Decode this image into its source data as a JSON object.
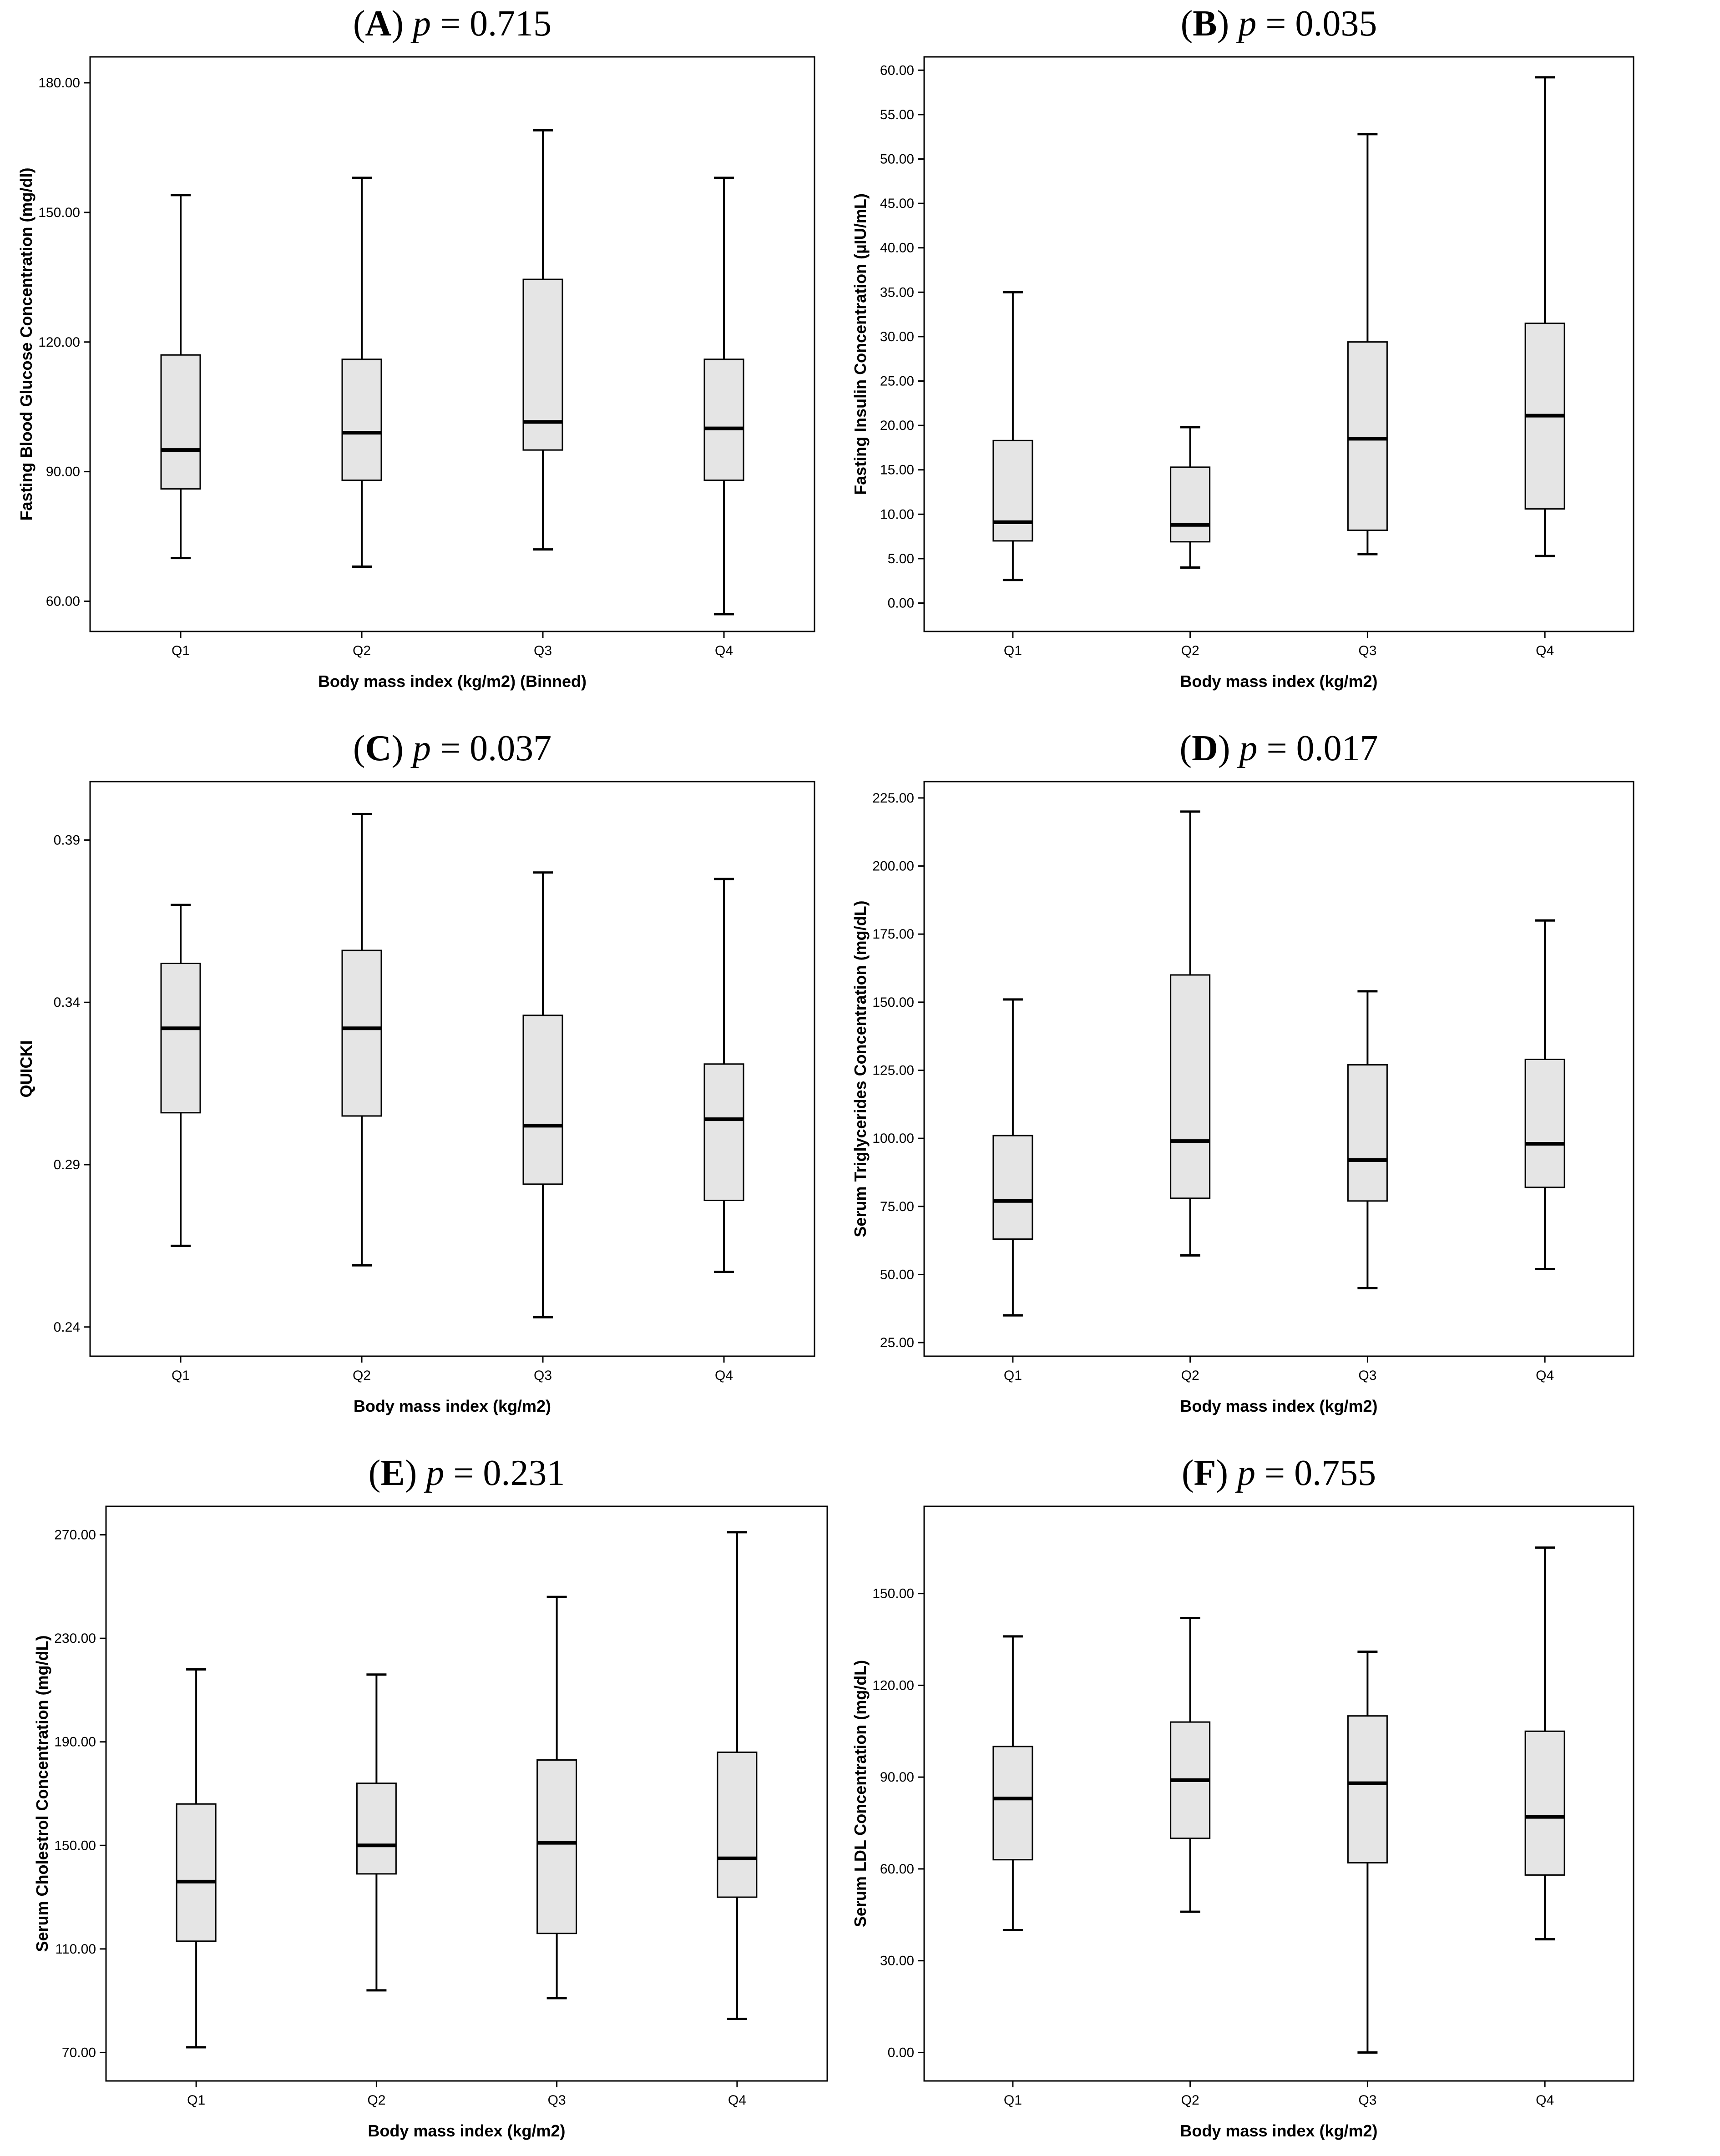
{
  "figure": {
    "background": "#ffffff",
    "box_fill": "#e5e5e5",
    "stroke": "#000000"
  },
  "chart_data": [
    {
      "type": "boxplot",
      "panel_letter": "A",
      "title_prefix": "(",
      "title_suffix": ")",
      "p_symbol": "p",
      "p_text": " = 0.715",
      "xlabel": "Body mass index (kg/m2) (Binned)",
      "ylabel": "Fasting Blood Glucose Concentration (mg/dl)",
      "ylim": [
        53.0,
        186.0
      ],
      "yticks": [
        60,
        90,
        120,
        150,
        180
      ],
      "tick_labels": [
        "60.00",
        "90.00",
        "120.00",
        "150.00",
        "180.00"
      ],
      "categories": [
        "Q1",
        "Q2",
        "Q3",
        "Q4"
      ],
      "series": [
        {
          "name": "Q1",
          "min": 70,
          "q1": 86,
          "median": 95,
          "q3": 117,
          "max": 154
        },
        {
          "name": "Q2",
          "min": 68,
          "q1": 88,
          "median": 99,
          "q3": 116,
          "max": 158
        },
        {
          "name": "Q3",
          "min": 72,
          "q1": 95,
          "median": 101.5,
          "q3": 134.5,
          "max": 169
        },
        {
          "name": "Q4",
          "min": 57,
          "q1": 88,
          "median": 100,
          "q3": 116,
          "max": 158
        }
      ]
    },
    {
      "type": "boxplot",
      "panel_letter": "B",
      "title_prefix": "(",
      "title_suffix": ")",
      "p_symbol": "p",
      "p_text": " = 0.035",
      "xlabel": "Body mass index (kg/m2)",
      "ylabel": "Fasting Insulin Concentration (µIU/mL)",
      "ylim": [
        -3.2,
        61.5
      ],
      "yticks": [
        0,
        5,
        10,
        15,
        20,
        25,
        30,
        35,
        40,
        45,
        50,
        55,
        60
      ],
      "tick_labels": [
        "0.00",
        "5.00",
        "10.00",
        "15.00",
        "20.00",
        "25.00",
        "30.00",
        "35.00",
        "40.00",
        "45.00",
        "50.00",
        "55.00",
        "60.00"
      ],
      "categories": [
        "Q1",
        "Q2",
        "Q3",
        "Q4"
      ],
      "series": [
        {
          "name": "Q1",
          "min": 2.6,
          "q1": 7.0,
          "median": 9.1,
          "q3": 18.3,
          "max": 35.0
        },
        {
          "name": "Q2",
          "min": 4.0,
          "q1": 6.9,
          "median": 8.8,
          "q3": 15.3,
          "max": 19.8
        },
        {
          "name": "Q3",
          "min": 5.5,
          "q1": 8.2,
          "median": 18.5,
          "q3": 29.4,
          "max": 52.8
        },
        {
          "name": "Q4",
          "min": 5.3,
          "q1": 10.6,
          "median": 21.1,
          "q3": 31.5,
          "max": 59.2
        }
      ]
    },
    {
      "type": "boxplot",
      "panel_letter": "C",
      "title_prefix": "(",
      "title_suffix": ")",
      "p_symbol": "p",
      "p_text": " = 0.037",
      "xlabel": "Body mass index (kg/m2)",
      "ylabel": "QUICKI",
      "ylim": [
        0.231,
        0.408
      ],
      "yticks": [
        0.24,
        0.29,
        0.34,
        0.39
      ],
      "tick_labels": [
        "0.24",
        "0.29",
        "0.34",
        "0.39"
      ],
      "categories": [
        "Q1",
        "Q2",
        "Q3",
        "Q4"
      ],
      "series": [
        {
          "name": "Q1",
          "min": 0.265,
          "q1": 0.306,
          "median": 0.332,
          "q3": 0.352,
          "max": 0.37
        },
        {
          "name": "Q2",
          "min": 0.259,
          "q1": 0.305,
          "median": 0.332,
          "q3": 0.356,
          "max": 0.398
        },
        {
          "name": "Q3",
          "min": 0.243,
          "q1": 0.284,
          "median": 0.302,
          "q3": 0.336,
          "max": 0.38
        },
        {
          "name": "Q4",
          "min": 0.257,
          "q1": 0.279,
          "median": 0.304,
          "q3": 0.321,
          "max": 0.378
        }
      ]
    },
    {
      "type": "boxplot",
      "panel_letter": "D",
      "title_prefix": "(",
      "title_suffix": ")",
      "p_symbol": "p",
      "p_text": " = 0.017",
      "xlabel": "Body mass index (kg/m2)",
      "ylabel": "Serum Triglycerides Concentration (mg/dL)",
      "ylim": [
        20.0,
        231.0
      ],
      "yticks": [
        25,
        50,
        75,
        100,
        125,
        150,
        175,
        200,
        225
      ],
      "tick_labels": [
        "25.00",
        "50.00",
        "75.00",
        "100.00",
        "125.00",
        "150.00",
        "175.00",
        "200.00",
        "225.00"
      ],
      "categories": [
        "Q1",
        "Q2",
        "Q3",
        "Q4"
      ],
      "series": [
        {
          "name": "Q1",
          "min": 35,
          "q1": 63,
          "median": 77,
          "q3": 101,
          "max": 151
        },
        {
          "name": "Q2",
          "min": 57,
          "q1": 78,
          "median": 99,
          "q3": 160,
          "max": 220
        },
        {
          "name": "Q3",
          "min": 45,
          "q1": 77,
          "median": 92,
          "q3": 127,
          "max": 154
        },
        {
          "name": "Q4",
          "min": 52,
          "q1": 82,
          "median": 98,
          "q3": 129,
          "max": 180
        }
      ]
    },
    {
      "type": "boxplot",
      "panel_letter": "E",
      "title_prefix": "(",
      "title_suffix": ")",
      "p_symbol": "p",
      "p_text": " = 0.231",
      "xlabel": "Body mass index (kg/m2)",
      "ylabel": "Serum Cholestrol Concentration (mg/dL)",
      "ylim": [
        59.0,
        281.0
      ],
      "yticks": [
        70,
        110,
        150,
        190,
        230,
        270
      ],
      "tick_labels": [
        "70.00",
        "110.00",
        "150.00",
        "190.00",
        "230.00",
        "270.00"
      ],
      "categories": [
        "Q1",
        "Q2",
        "Q3",
        "Q4"
      ],
      "series": [
        {
          "name": "Q1",
          "min": 72,
          "q1": 113,
          "median": 136,
          "q3": 166,
          "max": 218
        },
        {
          "name": "Q2",
          "min": 94,
          "q1": 139,
          "median": 150,
          "q3": 174,
          "max": 216
        },
        {
          "name": "Q3",
          "min": 91,
          "q1": 116,
          "median": 151,
          "q3": 183,
          "max": 246
        },
        {
          "name": "Q4",
          "min": 83,
          "q1": 130,
          "median": 145,
          "q3": 186,
          "max": 271
        }
      ]
    },
    {
      "type": "boxplot",
      "panel_letter": "F",
      "title_prefix": "(",
      "title_suffix": ")",
      "p_symbol": "p",
      "p_text": " = 0.755",
      "xlabel": "Body mass index (kg/m2)",
      "ylabel": "Serum LDL Concentration (mg/dL)",
      "ylim": [
        -9.3,
        178.5
      ],
      "yticks": [
        0,
        30,
        60,
        90,
        120,
        150
      ],
      "tick_labels": [
        "0.00",
        "30.00",
        "60.00",
        "90.00",
        "120.00",
        "150.00"
      ],
      "categories": [
        "Q1",
        "Q2",
        "Q3",
        "Q4"
      ],
      "series": [
        {
          "name": "Q1",
          "min": 40,
          "q1": 63,
          "median": 83,
          "q3": 100,
          "max": 136
        },
        {
          "name": "Q2",
          "min": 46,
          "q1": 70,
          "median": 89,
          "q3": 108,
          "max": 142
        },
        {
          "name": "Q3",
          "min": 0,
          "q1": 62,
          "median": 88,
          "q3": 110,
          "max": 131
        },
        {
          "name": "Q4",
          "min": 37,
          "q1": 58,
          "median": 77,
          "q3": 105,
          "max": 165
        }
      ]
    }
  ]
}
